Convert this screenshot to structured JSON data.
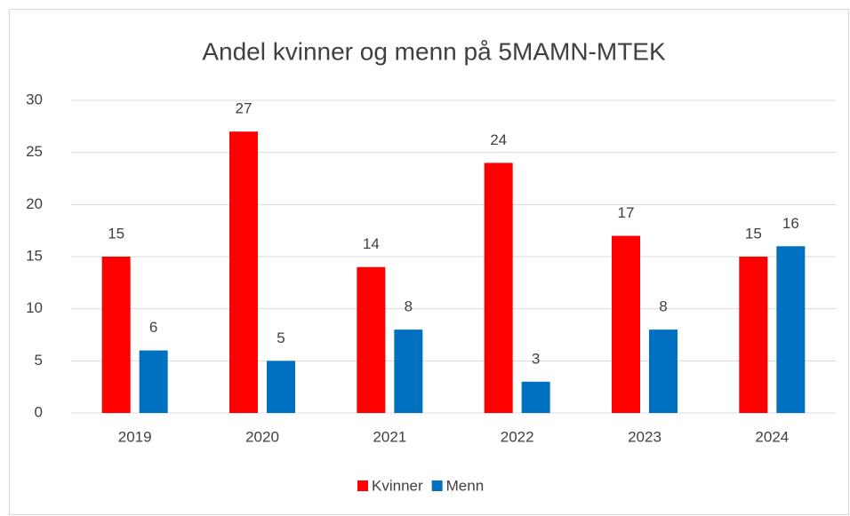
{
  "chart_data": {
    "type": "bar",
    "title": "Andel kvinner og menn på 5MAMN-MTEK",
    "categories": [
      "2019",
      "2020",
      "2021",
      "2022",
      "2023",
      "2024"
    ],
    "series": [
      {
        "name": "Kvinner",
        "color": "#ff0000",
        "values": [
          15,
          27,
          14,
          24,
          17,
          15
        ]
      },
      {
        "name": "Menn",
        "color": "#0070c0",
        "values": [
          6,
          5,
          8,
          3,
          8,
          16
        ]
      }
    ],
    "ylim": [
      0,
      30
    ],
    "yticks": [
      0,
      5,
      10,
      15,
      20,
      25,
      30
    ],
    "grid": true,
    "legend": "bottom"
  }
}
